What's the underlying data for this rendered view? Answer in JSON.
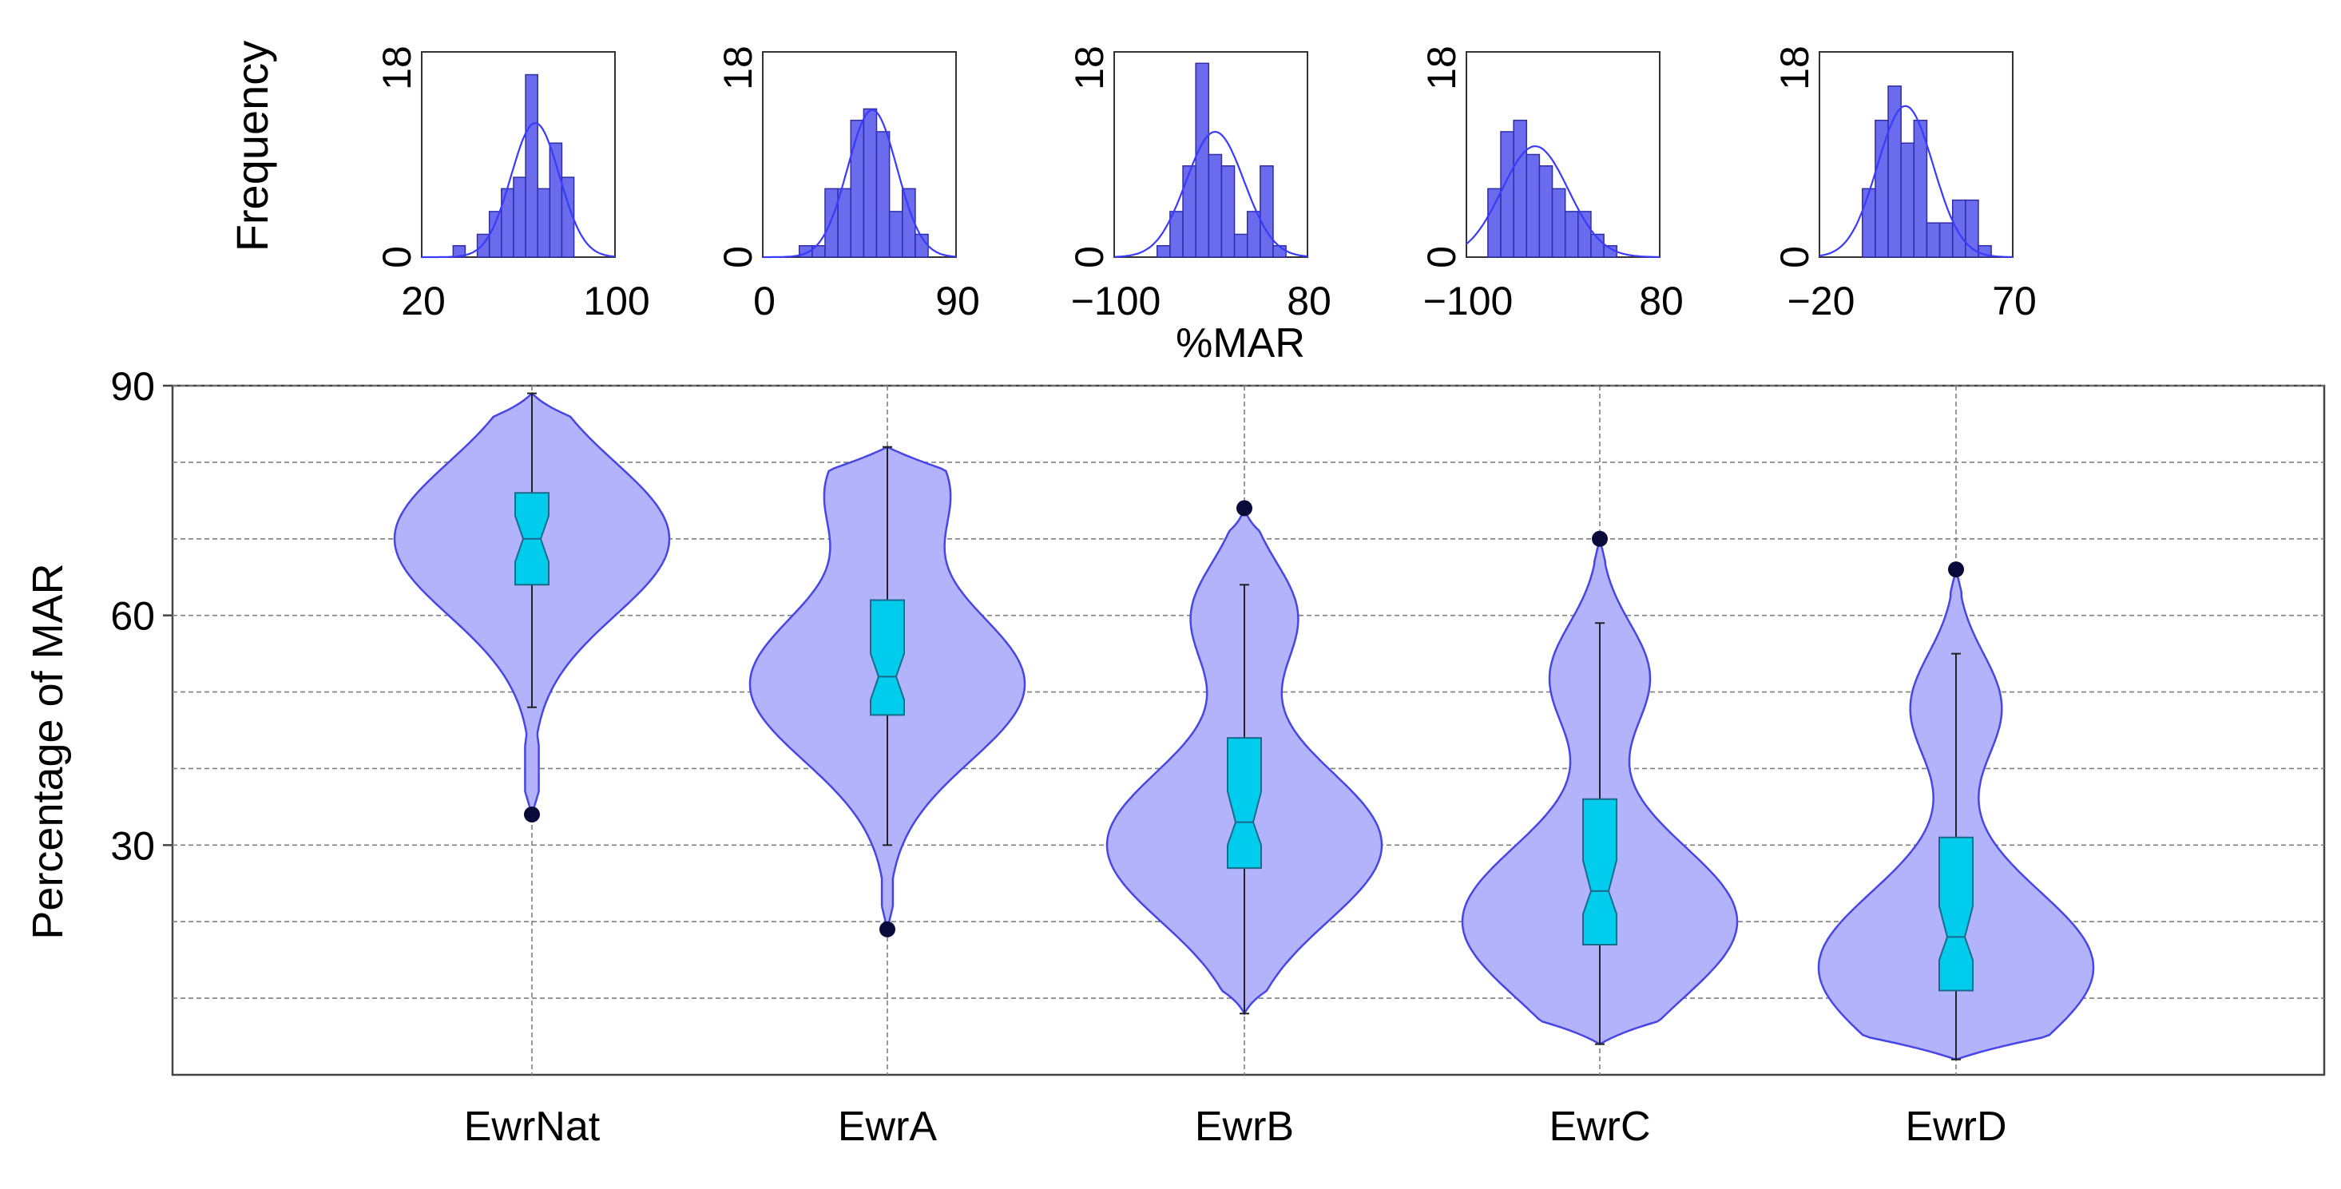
{
  "chart_data": [
    {
      "type": "histogram",
      "panels": [
        {
          "name": "EwrNat",
          "xlim": [
            20,
            100
          ],
          "ylim": [
            0,
            18
          ],
          "x_tick_labels": [
            "20",
            "100"
          ],
          "y_tick_labels": [
            "0",
            "18"
          ],
          "bins": [
            [
              33,
              38,
              1
            ],
            [
              38,
              43,
              0
            ],
            [
              43,
              48,
              2
            ],
            [
              48,
              53,
              4
            ],
            [
              53,
              58,
              6
            ],
            [
              58,
              63,
              7
            ],
            [
              63,
              68,
              16
            ],
            [
              68,
              73,
              6
            ],
            [
              73,
              78,
              10
            ],
            [
              78,
              83,
              7
            ]
          ],
          "normal_fit": {
            "mean": 67,
            "sd": 10
          },
          "bin_width": 5
        },
        {
          "name": "EwrA",
          "xlim": [
            0,
            90
          ],
          "ylim": [
            0,
            18
          ],
          "x_tick_labels": [
            "0",
            "90"
          ],
          "y_tick_labels": [
            "0",
            "18"
          ],
          "bins": [
            [
              17,
              23,
              1
            ],
            [
              23,
              29,
              1
            ],
            [
              29,
              35,
              6
            ],
            [
              35,
              41,
              6
            ],
            [
              41,
              47,
              12
            ],
            [
              47,
              53,
              13
            ],
            [
              53,
              59,
              11
            ],
            [
              59,
              65,
              4
            ],
            [
              65,
              71,
              6
            ],
            [
              71,
              77,
              2
            ]
          ],
          "normal_fit": {
            "mean": 51,
            "sd": 11.5
          },
          "bin_width": 6
        },
        {
          "name": "EwrB",
          "xlim": [
            -100,
            80
          ],
          "ylim": [
            0,
            18
          ],
          "x_tick_labels": [
            "−100",
            "80"
          ],
          "y_tick_labels": [
            "0",
            "18"
          ],
          "bins": [
            [
              -60,
              -48,
              1
            ],
            [
              -48,
              -36,
              4
            ],
            [
              -36,
              -24,
              8
            ],
            [
              -24,
              -12,
              17
            ],
            [
              -12,
              0,
              9
            ],
            [
              0,
              12,
              8
            ],
            [
              12,
              24,
              2
            ],
            [
              24,
              36,
              4
            ],
            [
              36,
              48,
              8
            ],
            [
              48,
              60,
              1
            ]
          ],
          "normal_fit": {
            "mean": -6,
            "sd": 27
          },
          "bin_width": 12
        },
        {
          "name": "EwrC",
          "xlim": [
            -100,
            80
          ],
          "ylim": [
            0,
            18
          ],
          "x_tick_labels": [
            "−100",
            "80"
          ],
          "y_tick_labels": [
            "0",
            "18"
          ],
          "bins": [
            [
              -80,
              -68,
              6
            ],
            [
              -68,
              -56,
              11
            ],
            [
              -56,
              -44,
              12
            ],
            [
              -44,
              -32,
              9
            ],
            [
              -32,
              -20,
              8
            ],
            [
              -20,
              -8,
              6
            ],
            [
              -8,
              4,
              4
            ],
            [
              4,
              16,
              4
            ],
            [
              16,
              28,
              2
            ],
            [
              28,
              40,
              1
            ]
          ],
          "normal_fit": {
            "mean": -36,
            "sd": 31
          },
          "bin_width": 12
        },
        {
          "name": "EwrD",
          "xlim": [
            -20,
            70
          ],
          "ylim": [
            0,
            18
          ],
          "x_tick_labels": [
            "−20",
            "70"
          ],
          "y_tick_labels": [
            "0",
            "18"
          ],
          "bins": [
            [
              0,
              6,
              6
            ],
            [
              6,
              12,
              12
            ],
            [
              12,
              18,
              15
            ],
            [
              18,
              24,
              10
            ],
            [
              24,
              30,
              12
            ],
            [
              30,
              36,
              3
            ],
            [
              36,
              42,
              3
            ],
            [
              42,
              48,
              5
            ],
            [
              48,
              54,
              5
            ],
            [
              54,
              60,
              1
            ]
          ],
          "normal_fit": {
            "mean": 20,
            "sd": 13
          },
          "bin_width": 6
        }
      ],
      "ylabel": "Frequency",
      "xlabel": "%MAR"
    },
    {
      "type": "violin",
      "ylabel": "Percentage of MAR",
      "ylim": [
        0,
        90
      ],
      "y_ticks": [
        30,
        60,
        90
      ],
      "grid_lines": [
        10,
        20,
        30,
        40,
        50,
        60,
        70,
        80,
        90
      ],
      "grid": true,
      "categories": [
        "EwrNat",
        "EwrA",
        "EwrB",
        "EwrC",
        "EwrD"
      ],
      "series": [
        {
          "name": "EwrNat",
          "violin_range": [
            34,
            89
          ],
          "density_peaks": [
            {
              "y": 70,
              "w": 1.0
            }
          ],
          "neck": {
            "y": 43,
            "w": 0.05
          },
          "q1": 64,
          "median": 70,
          "q3": 76,
          "whisker_low": 48,
          "whisker_high": 89,
          "notch_low": 67,
          "notch_high": 73,
          "outliers": [
            34
          ]
        },
        {
          "name": "EwrA",
          "violin_range": [
            19,
            82
          ],
          "density_peaks": [
            {
              "y": 51,
              "w": 1.0
            },
            {
              "y": 77,
              "w": 0.42
            }
          ],
          "q1": 47,
          "median": 52,
          "q3": 62,
          "whisker_low": 30,
          "whisker_high": 82,
          "notch_low": 49,
          "notch_high": 55,
          "outliers": [
            19
          ]
        },
        {
          "name": "EwrB",
          "violin_range": [
            8,
            74
          ],
          "density_peaks": [
            {
              "y": 30,
              "w": 1.0
            },
            {
              "y": 60,
              "w": 0.38
            }
          ],
          "q1": 27,
          "median": 33,
          "q3": 44,
          "whisker_low": 8,
          "whisker_high": 64,
          "notch_low": 30,
          "notch_high": 37,
          "outliers": [
            74
          ]
        },
        {
          "name": "EwrC",
          "violin_range": [
            4,
            70
          ],
          "density_peaks": [
            {
              "y": 20,
              "w": 1.0
            },
            {
              "y": 52,
              "w": 0.36
            }
          ],
          "q1": 17,
          "median": 24,
          "q3": 36,
          "whisker_low": 4,
          "whisker_high": 59,
          "notch_low": 21,
          "notch_high": 28,
          "outliers": [
            70
          ]
        },
        {
          "name": "EwrD",
          "violin_range": [
            2,
            66
          ],
          "density_peaks": [
            {
              "y": 14,
              "w": 1.0
            },
            {
              "y": 48,
              "w": 0.33
            }
          ],
          "q1": 11,
          "median": 18,
          "q3": 31,
          "whisker_low": 2,
          "whisker_high": 55,
          "notch_low": 15,
          "notch_high": 22,
          "outliers": [
            66
          ]
        }
      ]
    }
  ],
  "colors": {
    "hist_bar": "#6b6bee",
    "hist_bar_edge": "#2e2ea6",
    "fit_line": "#3a3aff",
    "violin_fill": "#b3b3fb",
    "violin_edge": "#4646e6",
    "box_fill": "#00ccee",
    "box_edge": "#1a6a8a",
    "outlier": "#0a0a3a",
    "grid": "#808080"
  }
}
